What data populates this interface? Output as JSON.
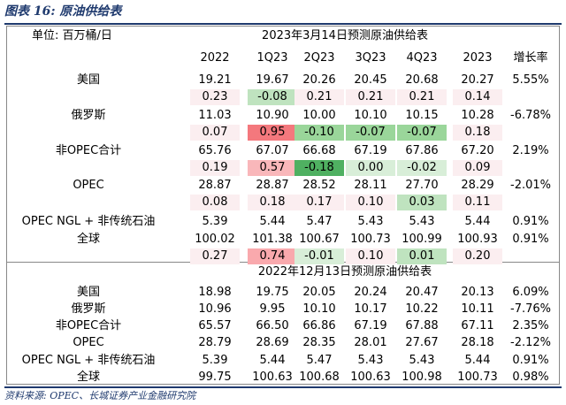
{
  "caption": "图表 16:  原油供给表",
  "unit_label": "单位:  百万桶/日",
  "section1_title": "2023年3月14日预测原油供给表",
  "section2_title": "2022年12月13日预测原油供给表",
  "columns": [
    "2022",
    "1Q23",
    "2Q23",
    "3Q23",
    "4Q23",
    "2023",
    "增长率"
  ],
  "section1_rows": [
    {
      "label": "美国",
      "values": [
        "19.21",
        "19.67",
        "20.26",
        "20.45",
        "20.68",
        "20.27",
        "5.55%"
      ],
      "diff": [
        "0.23",
        "-0.08",
        "0.21",
        "0.21",
        "0.21",
        "0.14"
      ],
      "diff_colors": [
        "#fbeef0",
        "#bfe3bf",
        "#fbeef0",
        "#fbeef0",
        "#fbeef0",
        "#fbeef0"
      ]
    },
    {
      "label": "俄罗斯",
      "values": [
        "11.03",
        "10.90",
        "10.00",
        "10.10",
        "10.15",
        "10.28",
        "-6.78%"
      ],
      "diff": [
        "0.07",
        "0.95",
        "-0.10",
        "-0.07",
        "-0.07",
        "0.18"
      ],
      "diff_colors": [
        "#fbeef0",
        "#f4787d",
        "#9ad69a",
        "#9ad69a",
        "#9ad69a",
        "#fbeef0"
      ]
    },
    {
      "label": "非OPEC合计",
      "values": [
        "65.76",
        "67.07",
        "66.68",
        "67.19",
        "67.86",
        "67.20",
        "2.19%"
      ],
      "diff": [
        "0.19",
        "0.57",
        "-0.18",
        "0.00",
        "-0.02",
        "0.09"
      ],
      "diff_colors": [
        "#fbeef0",
        "#f9b7ba",
        "#4fb061",
        "#d8eed8",
        "#d8eed8",
        "#fbeef0"
      ]
    },
    {
      "label": "OPEC",
      "values": [
        "28.87",
        "28.87",
        "28.52",
        "28.11",
        "27.70",
        "28.29",
        "-2.01%"
      ],
      "diff": [
        "0.08",
        "0.18",
        "0.17",
        "0.10",
        "0.03",
        "0.11"
      ],
      "diff_colors": [
        "#fbeef0",
        "#fbeef0",
        "#fbeef0",
        "#fbeef0",
        "#bfe3bf",
        "#fbeef0"
      ]
    },
    {
      "label": "OPEC NGL + 非传统石油",
      "values": [
        "5.39",
        "5.44",
        "5.47",
        "5.43",
        "5.43",
        "5.44",
        "0.91%"
      ],
      "diff": null,
      "diff_colors": null
    },
    {
      "label": "全球",
      "values": [
        "100.02",
        "101.38",
        "100.67",
        "100.73",
        "100.99",
        "100.93",
        "0.91%"
      ],
      "diff": [
        "0.27",
        "0.74",
        "-0.01",
        "0.10",
        "0.01",
        "0.20"
      ],
      "diff_colors": [
        "#fbeef0",
        "#f9a9ad",
        "#d8eed8",
        "#fbeef0",
        "#bfe3bf",
        "#fbeef0"
      ]
    }
  ],
  "section2_rows": [
    {
      "label": "美国",
      "values": [
        "18.98",
        "19.75",
        "20.05",
        "20.24",
        "20.47",
        "20.13",
        "6.09%"
      ]
    },
    {
      "label": "俄罗斯",
      "values": [
        "10.96",
        "9.95",
        "10.10",
        "10.17",
        "10.22",
        "10.11",
        "-7.76%"
      ]
    },
    {
      "label": "非OPEC合计",
      "values": [
        "65.57",
        "66.50",
        "66.86",
        "67.19",
        "67.88",
        "67.11",
        "2.35%"
      ]
    },
    {
      "label": "OPEC",
      "values": [
        "28.79",
        "28.69",
        "28.35",
        "28.01",
        "27.67",
        "28.18",
        "-2.12%"
      ]
    },
    {
      "label": "OPEC NGL + 非传统石油",
      "values": [
        "5.39",
        "5.44",
        "5.47",
        "5.43",
        "5.43",
        "5.44",
        "0.91%"
      ]
    },
    {
      "label": "全球",
      "values": [
        "99.75",
        "100.63",
        "100.68",
        "100.63",
        "100.98",
        "100.73",
        "0.98%"
      ]
    }
  ],
  "source": "资料来源:  OPEC、长城证券产业金融研究院"
}
